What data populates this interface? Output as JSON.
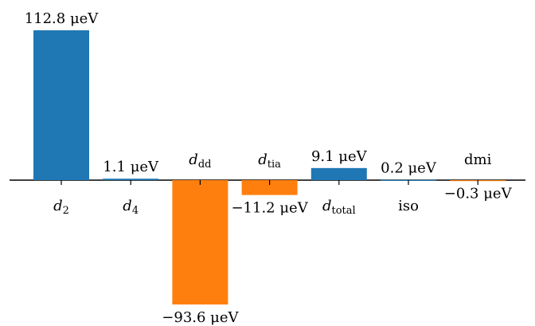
{
  "chart_data": {
    "type": "bar",
    "categories": [
      {
        "symbol": "d",
        "sub": "2"
      },
      {
        "symbol": "d",
        "sub": "4"
      },
      {
        "symbol": "d",
        "sub": "dd"
      },
      {
        "symbol": "d",
        "sub": "tia"
      },
      {
        "symbol": "d",
        "sub": "total"
      },
      {
        "symbol": "",
        "sub": "",
        "text": "iso"
      },
      {
        "symbol": "",
        "sub": "",
        "text": "dmi"
      }
    ],
    "values": [
      112.8,
      1.1,
      -93.6,
      -11.2,
      9.1,
      0.2,
      -0.3
    ],
    "value_labels": [
      "112.8 μeV",
      "1.1 μeV",
      "−93.6 μeV",
      "−11.2 μeV",
      "9.1 μeV",
      "0.2 μeV",
      "−0.3 μeV"
    ],
    "unit": "μeV",
    "colors": {
      "positive": "#1f77b4",
      "negative": "#ff7f0e"
    },
    "title": "",
    "xlabel": "",
    "ylabel": "",
    "grid": false
  }
}
